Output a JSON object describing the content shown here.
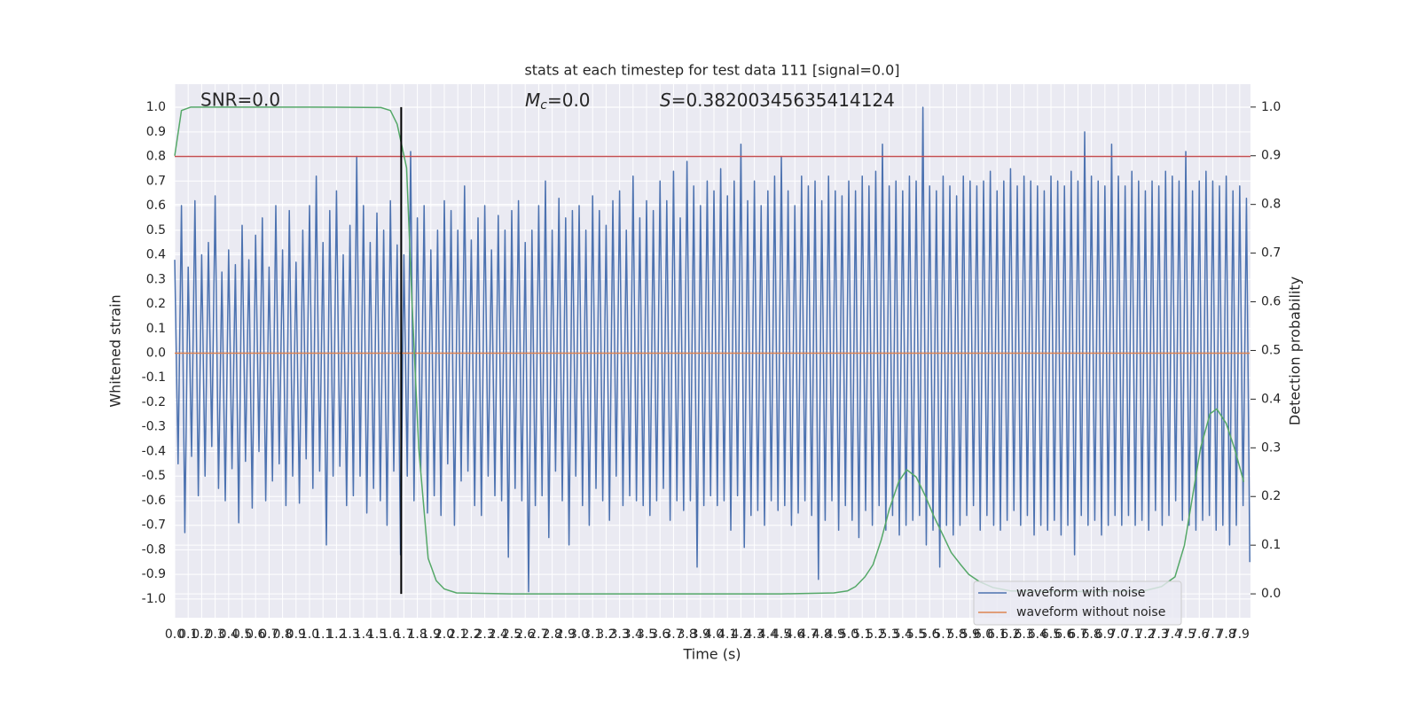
{
  "chart_data": {
    "type": "line",
    "title": "stats at each timestep for test data 111 [signal=0.0]",
    "xlabel": "Time (s)",
    "ylabel": "Whitened strain",
    "y2label": "Detection probability",
    "annotations": [
      {
        "text": "SNR=0.0"
      },
      {
        "symbol": "M",
        "subscript": "c",
        "text": "=0.0"
      },
      {
        "symbol": "S",
        "text": "=0.38200345635414124"
      }
    ],
    "xlim": [
      0,
      7.98
    ],
    "ylim": [
      -1.076,
      1.094
    ],
    "y2lim": [
      -0.049,
      1.047
    ],
    "xticks": [
      {
        "value": 0,
        "label": "0.0"
      },
      0.1,
      0.2,
      0.3,
      0.4,
      0.5,
      0.6,
      0.7,
      0.8,
      0.9,
      {
        "value": 1,
        "label": "1.0"
      },
      1.1,
      1.2,
      1.3,
      1.4,
      1.5,
      1.6,
      1.7,
      1.8,
      1.9,
      {
        "value": 2,
        "label": "2.0"
      },
      2.1,
      2.2,
      2.3,
      2.4,
      2.5,
      2.6,
      2.7,
      2.8,
      2.9,
      {
        "value": 3,
        "label": "3.0"
      },
      3.1,
      3.2,
      3.3,
      3.4,
      3.5,
      3.6,
      3.7,
      3.8,
      3.9,
      {
        "value": 4,
        "label": "4.0"
      },
      4.1,
      4.2,
      4.3,
      4.4,
      4.5,
      4.6,
      4.7,
      4.8,
      4.9,
      {
        "value": 5,
        "label": "5.0"
      },
      5.1,
      5.2,
      5.3,
      5.4,
      5.5,
      5.6,
      5.7,
      5.8,
      5.9,
      {
        "value": 6,
        "label": "6.0"
      },
      6.1,
      6.2,
      6.3,
      6.4,
      6.5,
      6.6,
      6.7,
      6.8,
      6.9,
      {
        "value": 7,
        "label": "7.0"
      },
      7.1,
      7.2,
      7.3,
      7.4,
      7.5,
      7.6,
      7.7,
      7.8,
      7.9
    ],
    "yticks": [
      {
        "value": -1,
        "label": "-1.0"
      },
      -0.9,
      -0.8,
      -0.7,
      -0.6,
      -0.5,
      -0.4,
      -0.3,
      -0.2,
      -0.1,
      {
        "value": 0,
        "label": "0.0"
      },
      0.1,
      0.2,
      0.3,
      0.4,
      0.5,
      0.6,
      0.7,
      0.8,
      0.9,
      {
        "value": 1,
        "label": "1.0"
      }
    ],
    "y2ticks": [
      {
        "value": 0,
        "label": "0.0"
      },
      0.1,
      0.2,
      0.3,
      0.4,
      0.5,
      0.6,
      0.7,
      0.8,
      0.9,
      {
        "value": 1,
        "label": "1.0"
      }
    ],
    "grid": true,
    "legend": "lower right",
    "hline": {
      "y": 0.8,
      "color": "#c44e52"
    },
    "vline": {
      "x": 1.68,
      "y2": [
        0,
        1
      ],
      "color": "#000000"
    },
    "series": [
      {
        "name": "waveform with noise",
        "color": "#4c72b0",
        "x": [
          0,
          0.025,
          0.05,
          0.075,
          0.1,
          0.125,
          0.15,
          0.175,
          0.2,
          0.225,
          0.25,
          0.275,
          0.3,
          0.325,
          0.35,
          0.375,
          0.4,
          0.425,
          0.45,
          0.475,
          0.5,
          0.525,
          0.55,
          0.575,
          0.6,
          0.625,
          0.65,
          0.675,
          0.7,
          0.725,
          0.75,
          0.775,
          0.8,
          0.825,
          0.85,
          0.875,
          0.9,
          0.925,
          0.95,
          0.975,
          1,
          1.025,
          1.05,
          1.075,
          1.1,
          1.125,
          1.15,
          1.175,
          1.2,
          1.225,
          1.25,
          1.275,
          1.3,
          1.325,
          1.35,
          1.375,
          1.4,
          1.425,
          1.45,
          1.475,
          1.5,
          1.525,
          1.55,
          1.575,
          1.6,
          1.625,
          1.65,
          1.675,
          1.7,
          1.725,
          1.75,
          1.775,
          1.8,
          1.825,
          1.85,
          1.875,
          1.9,
          1.925,
          1.95,
          1.975,
          2,
          2.025,
          2.05,
          2.075,
          2.1,
          2.125,
          2.15,
          2.175,
          2.2,
          2.225,
          2.25,
          2.275,
          2.3,
          2.325,
          2.35,
          2.375,
          2.4,
          2.425,
          2.45,
          2.475,
          2.5,
          2.525,
          2.55,
          2.575,
          2.6,
          2.625,
          2.65,
          2.675,
          2.7,
          2.725,
          2.75,
          2.775,
          2.8,
          2.825,
          2.85,
          2.875,
          2.9,
          2.925,
          2.95,
          2.975,
          3,
          3.025,
          3.05,
          3.075,
          3.1,
          3.125,
          3.15,
          3.175,
          3.2,
          3.225,
          3.25,
          3.275,
          3.3,
          3.325,
          3.35,
          3.375,
          3.4,
          3.425,
          3.45,
          3.475,
          3.5,
          3.525,
          3.55,
          3.575,
          3.6,
          3.625,
          3.65,
          3.675,
          3.7,
          3.725,
          3.75,
          3.775,
          3.8,
          3.825,
          3.85,
          3.875,
          3.9,
          3.925,
          3.95,
          3.975,
          4,
          4.025,
          4.05,
          4.075,
          4.1,
          4.125,
          4.15,
          4.175,
          4.2,
          4.225,
          4.25,
          4.275,
          4.3,
          4.325,
          4.35,
          4.375,
          4.4,
          4.425,
          4.45,
          4.475,
          4.5,
          4.525,
          4.55,
          4.575,
          4.6,
          4.625,
          4.65,
          4.675,
          4.7,
          4.725,
          4.75,
          4.775,
          4.8,
          4.825,
          4.85,
          4.875,
          4.9,
          4.925,
          4.95,
          4.975,
          5,
          5.025,
          5.05,
          5.075,
          5.1,
          5.125,
          5.15,
          5.175,
          5.2,
          5.225,
          5.25,
          5.275,
          5.3,
          5.325,
          5.35,
          5.375,
          5.4,
          5.425,
          5.45,
          5.475,
          5.5,
          5.525,
          5.55,
          5.575,
          5.6,
          5.625,
          5.65,
          5.675,
          5.7,
          5.725,
          5.75,
          5.775,
          5.8,
          5.825,
          5.85,
          5.875,
          5.9,
          5.925,
          5.95,
          5.975,
          6,
          6.025,
          6.05,
          6.075,
          6.1,
          6.125,
          6.15,
          6.175,
          6.2,
          6.225,
          6.25,
          6.275,
          6.3,
          6.325,
          6.35,
          6.375,
          6.4,
          6.425,
          6.45,
          6.475,
          6.5,
          6.525,
          6.55,
          6.575,
          6.6,
          6.625,
          6.65,
          6.675,
          6.7,
          6.725,
          6.75,
          6.775,
          6.8,
          6.825,
          6.85,
          6.875,
          6.9,
          6.925,
          6.95,
          6.975,
          7,
          7.025,
          7.05,
          7.075,
          7.1,
          7.125,
          7.15,
          7.175,
          7.2,
          7.225,
          7.25,
          7.275,
          7.3,
          7.325,
          7.35,
          7.375,
          7.4,
          7.425,
          7.45,
          7.475,
          7.5,
          7.525,
          7.55,
          7.575,
          7.6,
          7.625,
          7.65,
          7.675,
          7.7,
          7.725,
          7.75,
          7.775,
          7.8,
          7.825,
          7.85,
          7.875,
          7.9,
          7.925,
          7.95,
          7.975
        ],
        "values": [
          0.38,
          -0.45,
          0.6,
          -0.73,
          0.35,
          -0.42,
          0.62,
          -0.58,
          0.4,
          -0.5,
          0.45,
          -0.38,
          0.64,
          -0.55,
          0.33,
          -0.6,
          0.42,
          -0.47,
          0.36,
          -0.69,
          0.52,
          -0.44,
          0.38,
          -0.63,
          0.48,
          -0.4,
          0.55,
          -0.6,
          0.35,
          -0.52,
          0.6,
          -0.45,
          0.42,
          -0.62,
          0.58,
          -0.5,
          0.37,
          -0.61,
          0.5,
          -0.43,
          0.6,
          -0.55,
          0.72,
          -0.48,
          0.45,
          -0.78,
          0.58,
          -0.5,
          0.66,
          -0.46,
          0.4,
          -0.62,
          0.52,
          -0.58,
          0.8,
          -0.5,
          0.6,
          -0.65,
          0.45,
          -0.55,
          0.57,
          -0.6,
          0.5,
          -0.7,
          0.62,
          -0.48,
          0.44,
          -0.82,
          0.4,
          -0.5,
          0.82,
          -0.6,
          0.55,
          -0.48,
          0.6,
          -0.65,
          0.42,
          -0.58,
          0.5,
          -0.66,
          0.62,
          -0.45,
          0.58,
          -0.7,
          0.5,
          -0.52,
          0.68,
          -0.48,
          0.46,
          -0.62,
          0.55,
          -0.66,
          0.6,
          -0.5,
          0.42,
          -0.58,
          0.56,
          -0.6,
          0.5,
          -0.83,
          0.58,
          -0.55,
          0.62,
          -0.6,
          0.45,
          -0.97,
          0.5,
          -0.62,
          0.6,
          -0.58,
          0.7,
          -0.75,
          0.5,
          -0.48,
          0.63,
          -0.6,
          0.55,
          -0.78,
          0.58,
          -0.5,
          0.6,
          -0.62,
          0.5,
          -0.7,
          0.64,
          -0.55,
          0.58,
          -0.6,
          0.52,
          -0.68,
          0.62,
          -0.5,
          0.66,
          -0.62,
          0.5,
          -0.58,
          0.72,
          -0.6,
          0.55,
          -0.62,
          0.62,
          -0.66,
          0.58,
          -0.6,
          0.7,
          -0.55,
          0.62,
          -0.68,
          0.74,
          -0.6,
          0.55,
          -0.64,
          0.78,
          -0.6,
          0.68,
          -0.87,
          0.6,
          -0.62,
          0.7,
          -0.58,
          0.66,
          -0.62,
          0.75,
          -0.6,
          0.64,
          -0.72,
          0.7,
          -0.58,
          0.85,
          -0.79,
          0.62,
          -0.66,
          0.7,
          -0.64,
          0.6,
          -0.7,
          0.66,
          -0.6,
          0.72,
          -0.64,
          0.8,
          -0.62,
          0.66,
          -0.7,
          0.6,
          -0.65,
          0.72,
          -0.6,
          0.68,
          -0.66,
          0.7,
          -0.92,
          0.62,
          -0.68,
          0.72,
          -0.6,
          0.66,
          -0.72,
          0.64,
          -0.62,
          0.7,
          -0.68,
          0.66,
          -0.75,
          0.72,
          -0.64,
          0.68,
          -0.7,
          0.74,
          -0.62,
          0.85,
          -0.72,
          0.68,
          -0.66,
          0.7,
          -0.74,
          0.66,
          -0.7,
          0.72,
          -0.68,
          0.7,
          -0.66,
          1.0,
          -0.78,
          0.68,
          -0.72,
          0.66,
          -0.87,
          0.72,
          -0.7,
          0.68,
          -0.74,
          0.64,
          -0.7,
          0.72,
          -0.66,
          0.7,
          -0.62,
          0.68,
          -0.72,
          0.7,
          -0.66,
          0.74,
          -0.7,
          0.66,
          -0.72,
          0.7,
          -0.68,
          0.75,
          -0.64,
          0.68,
          -0.7,
          0.72,
          -0.66,
          0.7,
          -0.74,
          0.68,
          -0.7,
          0.66,
          -0.72,
          0.72,
          -0.68,
          0.7,
          -0.74,
          0.68,
          -0.7,
          0.74,
          -0.82,
          0.7,
          -0.66,
          0.9,
          -0.7,
          0.72,
          -0.68,
          0.7,
          -0.74,
          0.68,
          -0.7,
          0.85,
          -0.66,
          0.72,
          -0.7,
          0.68,
          -0.66,
          0.74,
          -0.7,
          0.7,
          -0.68,
          0.66,
          -0.72,
          0.7,
          -0.64,
          0.68,
          -0.7,
          0.74,
          -0.66,
          0.72,
          -0.6,
          0.7,
          -0.68,
          0.82,
          -0.7,
          0.66,
          -0.72,
          0.7,
          -0.68,
          0.74,
          -0.66,
          0.7,
          -0.72,
          0.68,
          -0.7,
          0.72,
          -0.78,
          0.66,
          -0.7,
          0.68,
          -0.62,
          0.63,
          -0.85
        ]
      },
      {
        "name": "waveform without noise",
        "color": "#dd8452",
        "x": [
          0,
          7.975
        ],
        "values": [
          0,
          0
        ]
      },
      {
        "color": "#55a868",
        "axis": "y2",
        "x": [
          0,
          0.05,
          0.12,
          0.5,
          1.0,
          1.53,
          1.6,
          1.65,
          1.72,
          1.76,
          1.81,
          1.88,
          1.94,
          2.0,
          2.09,
          2.5,
          3.5,
          4.5,
          4.89,
          4.99,
          5.05,
          5.12,
          5.18,
          5.24,
          5.3,
          5.37,
          5.43,
          5.5,
          5.57,
          5.63,
          5.7,
          5.76,
          5.83,
          5.89,
          5.97,
          6.07,
          6.2,
          6.6,
          6.99,
          7.19,
          7.32,
          7.42,
          7.49,
          7.55,
          7.61,
          7.68,
          7.73,
          7.8,
          7.86,
          7.93
        ],
        "values": [
          0.9,
          0.993,
          1.0,
          1.0,
          1.0,
          0.999,
          0.993,
          0.965,
          0.875,
          0.6,
          0.3,
          0.073,
          0.027,
          0.01,
          0.002,
          0,
          0,
          0,
          0.002,
          0.006,
          0.015,
          0.035,
          0.06,
          0.11,
          0.173,
          0.23,
          0.255,
          0.24,
          0.2,
          0.16,
          0.12,
          0.085,
          0.06,
          0.04,
          0.025,
          0.013,
          0.006,
          0.005,
          0.005,
          0.006,
          0.015,
          0.035,
          0.1,
          0.2,
          0.3,
          0.37,
          0.38,
          0.35,
          0.3,
          0.23
        ]
      }
    ]
  }
}
